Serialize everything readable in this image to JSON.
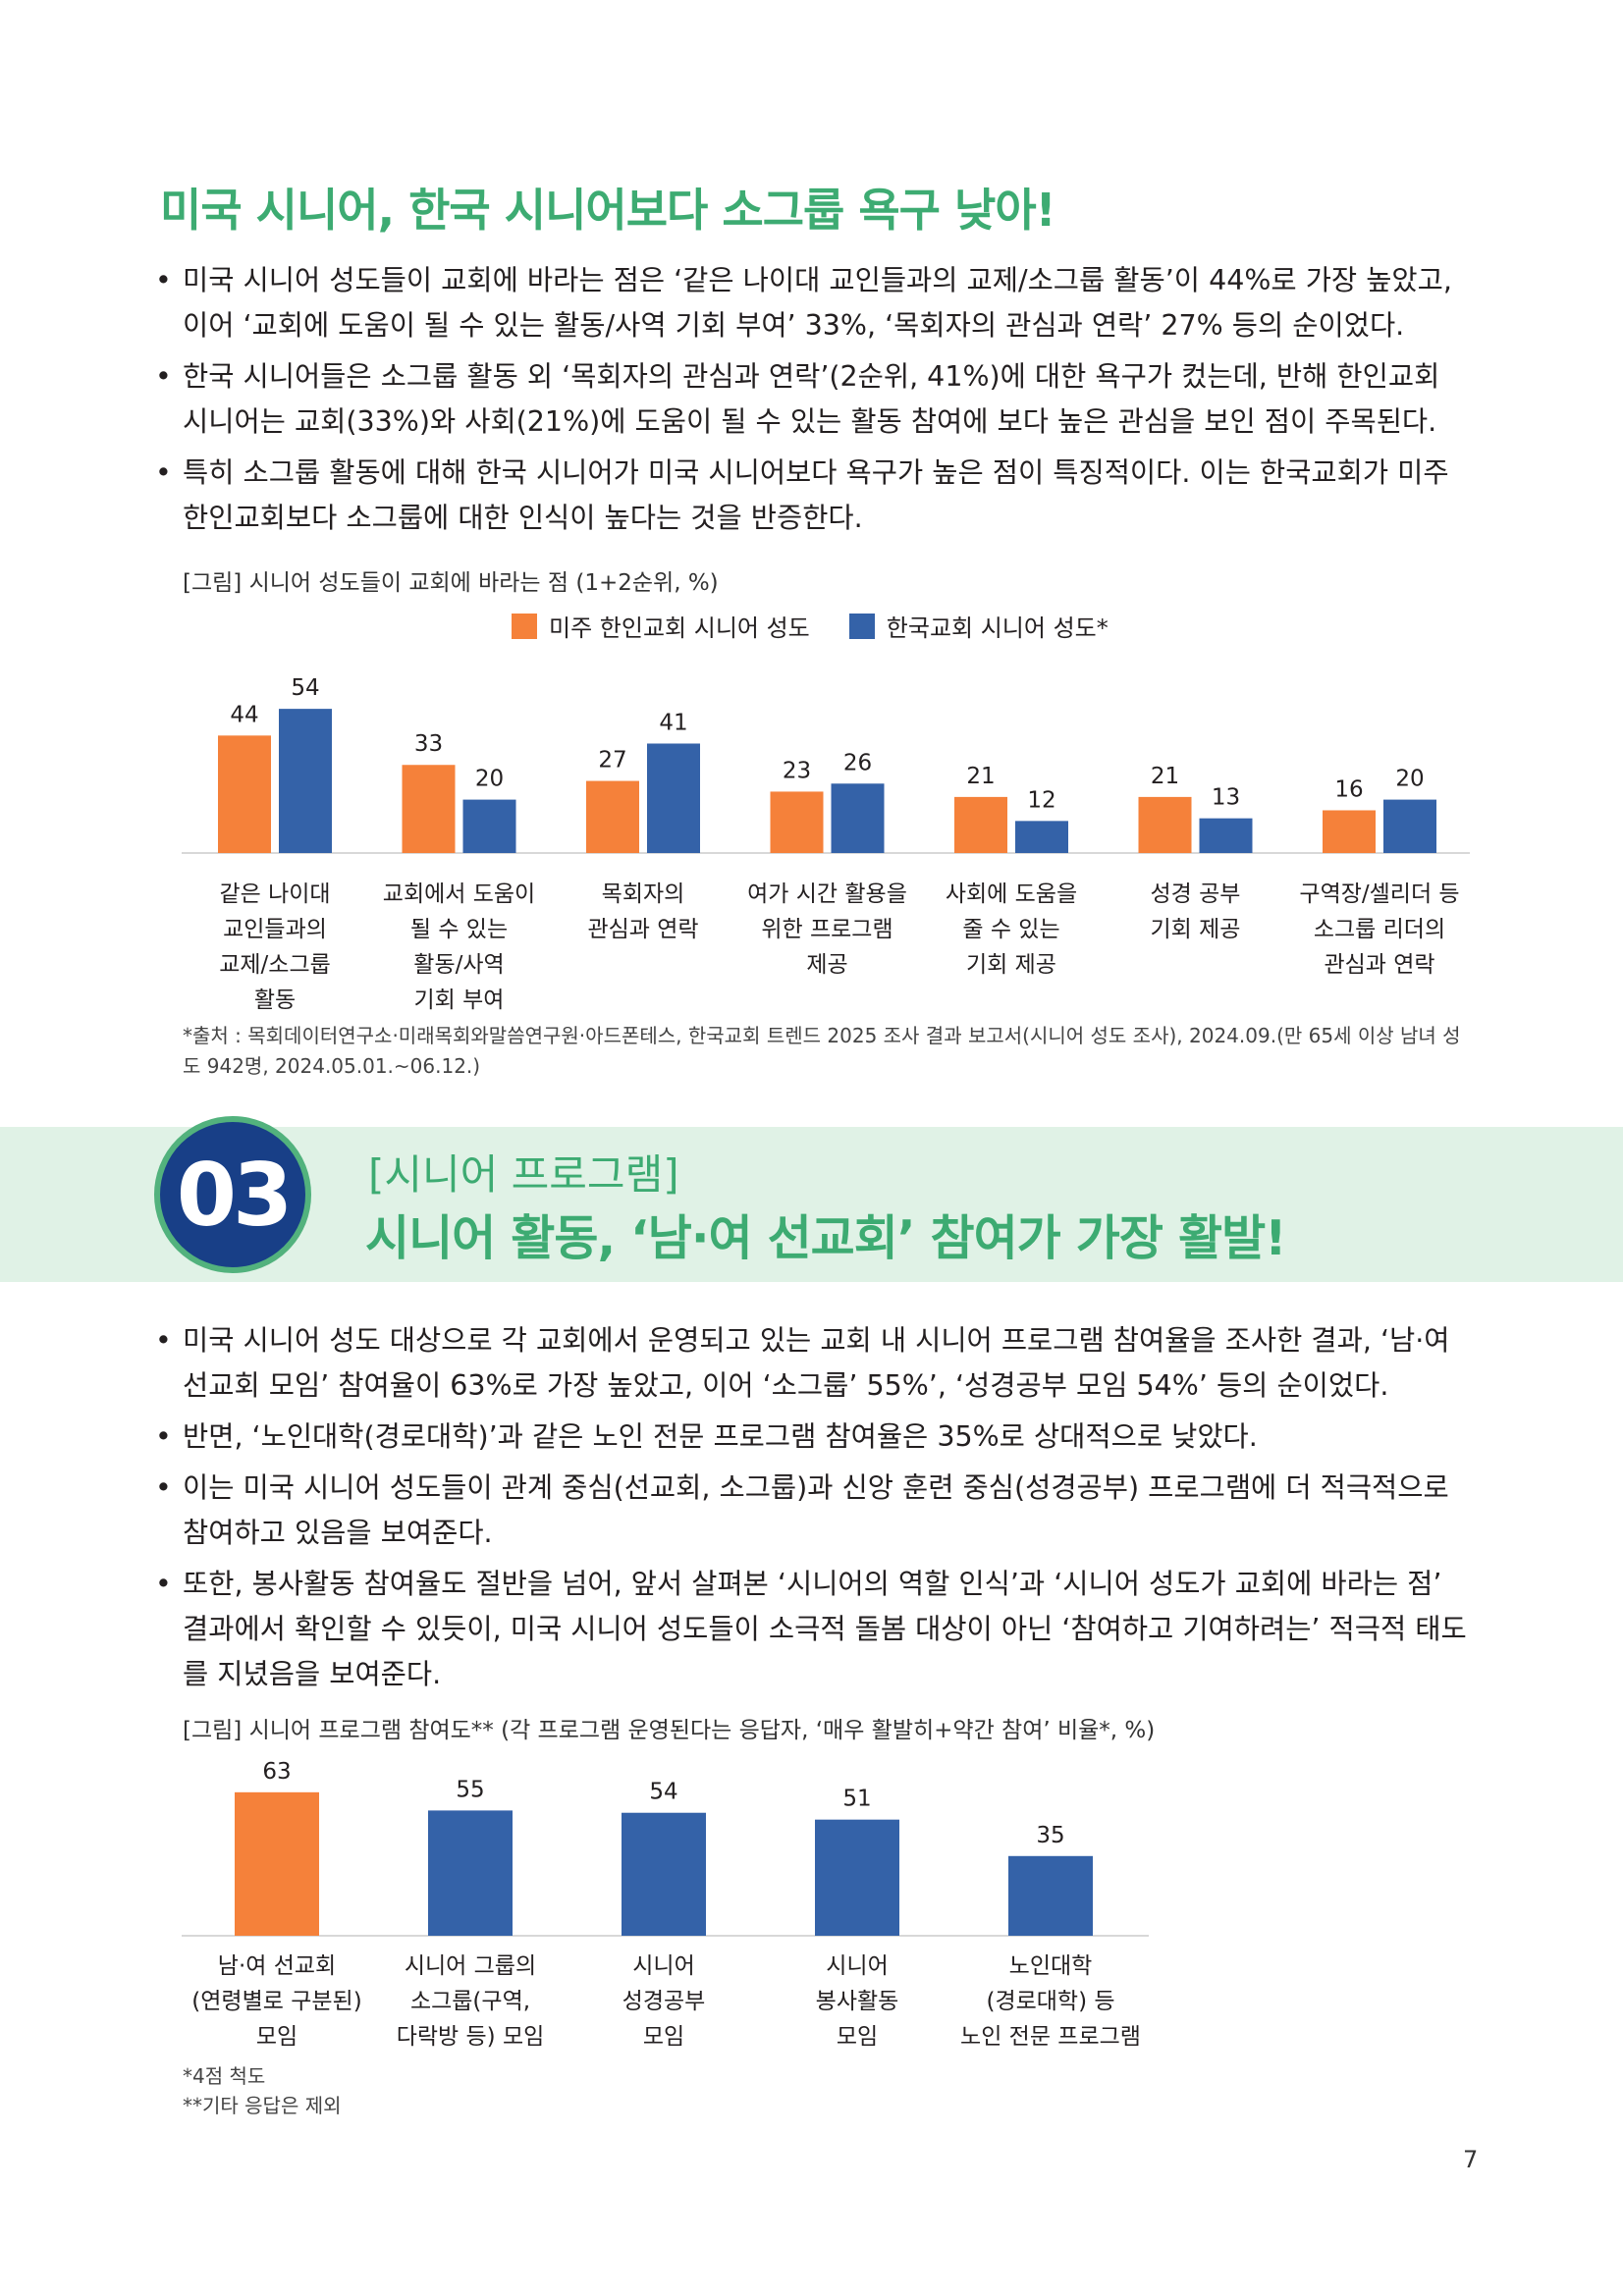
{
  "section1": {
    "title": "미국 시니어, 한국 시니어보다 소그룹 욕구 낮아!",
    "bullets": [
      "미국 시니어 성도들이 교회에 바라는 점은 ‘같은 나이대 교인들과의 교제/소그룹 활동’이 44%로 가장 높았고, 이어 ‘교회에 도움이 될 수 있는 활동/사역 기회 부여’ 33%, ‘목회자의 관심과 연락’ 27% 등의 순이었다.",
      "한국 시니어들은 소그룹 활동 외 ‘목회자의 관심과 연락’(2순위, 41%)에 대한 욕구가 컸는데, 반해 한인교회 시니어는 교회(33%)와 사회(21%)에 도움이 될 수 있는 활동 참여에 보다 높은 관심을 보인 점이 주목된다.",
      "특히 소그룹 활동에 대해 한국 시니어가 미국 시니어보다 욕구가 높은 점이 특징적이다. 이는 한국교회가 미주 한인교회보다 소그룹에 대한 인식이 높다는 것을 반증한다."
    ],
    "figure_caption": "[그림] 시니어 성도들이 교회에 바라는 점 (1+2순위, %)",
    "source": "*출처 : 목회데이터연구소·미래목회와말씀연구원·아드폰테스, 한국교회 트렌드 2025 조사 결과 보고서(시니어 성도 조사), 2024.09.(만 65세 이상 남녀 성도 942명, 2024.05.01.~06.12.)"
  },
  "section3": {
    "number": "03",
    "subtitle": "[시니어 프로그램]",
    "title": "시니어 활동, ‘남·여 선교회’ 참여가 가장 활발!",
    "bullets": [
      "미국 시니어 성도 대상으로 각 교회에서 운영되고 있는 교회 내 시니어 프로그램 참여율을 조사한 결과, ‘남·여 선교회 모임’ 참여율이 63%로 가장 높았고, 이어 ‘소그룹’ 55%’, ‘성경공부 모임 54%’ 등의 순이었다.",
      "반면, ‘노인대학(경로대학)’과 같은 노인 전문 프로그램 참여율은 35%로 상대적으로 낮았다.",
      "이는 미국 시니어 성도들이 관계 중심(선교회, 소그룹)과 신앙 훈련 중심(성경공부) 프로그램에 더 적극적으로 참여하고 있음을 보여준다.",
      "또한, 봉사활동 참여율도 절반을 넘어, 앞서 살펴본 ‘시니어의 역할 인식’과 ‘시니어 성도가 교회에 바라는 점’ 결과에서 확인할 수 있듯이, 미국 시니어 성도들이 소극적 돌봄 대상이 아닌 ‘참여하고 기여하려는’ 적극적 태도를 지녔음을 보여준다."
    ],
    "figure_caption": "[그림] 시니어 프로그램 참여도** (각 프로그램 운영된다는 응답자, ‘매우 활발히+약간 참여’ 비율*, %)",
    "notes": [
      "*4점 척도",
      "**기타 응답은 제외"
    ]
  },
  "page_number": "7",
  "colors": {
    "orange": "#f5813a",
    "blue": "#3462a8",
    "green": "#3dab72",
    "navy": "#183f87",
    "band": "#e0f2e6"
  },
  "chart_data": [
    {
      "type": "bar",
      "categories": [
        [
          "같은 나이대",
          "교인들과의",
          "교제/소그룹",
          "활동"
        ],
        [
          "교회에서 도움이",
          "될 수 있는",
          "활동/사역",
          "기회 부여"
        ],
        [
          "목회자의",
          "관심과 연락"
        ],
        [
          "여가 시간 활용을",
          "위한 프로그램",
          "제공"
        ],
        [
          "사회에 도움을",
          "줄 수 있는",
          "기회 제공"
        ],
        [
          "성경 공부",
          "기회 제공"
        ],
        [
          "구역장/셀리더 등",
          "소그룹 리더의",
          "관심과 연락"
        ]
      ],
      "series": [
        {
          "name": "미주 한인교회 시니어 성도",
          "color": "#f5813a",
          "values": [
            44,
            33,
            27,
            23,
            21,
            21,
            16
          ]
        },
        {
          "name": "한국교회 시니어 성도*",
          "color": "#3462a8",
          "values": [
            54,
            20,
            41,
            26,
            12,
            13,
            20
          ]
        }
      ],
      "ylim": [
        0,
        60
      ]
    },
    {
      "type": "bar",
      "categories": [
        [
          "남·여 선교회",
          "(연령별로 구분된)",
          "모임"
        ],
        [
          "시니어 그룹의",
          "소그룹(구역,",
          "다락방 등) 모임"
        ],
        [
          "시니어",
          "성경공부",
          "모임"
        ],
        [
          "시니어",
          "봉사활동",
          "모임"
        ],
        [
          "노인대학",
          "(경로대학) 등",
          "노인 전문 프로그램"
        ]
      ],
      "values": [
        63,
        55,
        54,
        51,
        35
      ],
      "colors": [
        "#f5813a",
        "#3462a8",
        "#3462a8",
        "#3462a8",
        "#3462a8"
      ],
      "ylim": [
        0,
        70
      ]
    }
  ]
}
